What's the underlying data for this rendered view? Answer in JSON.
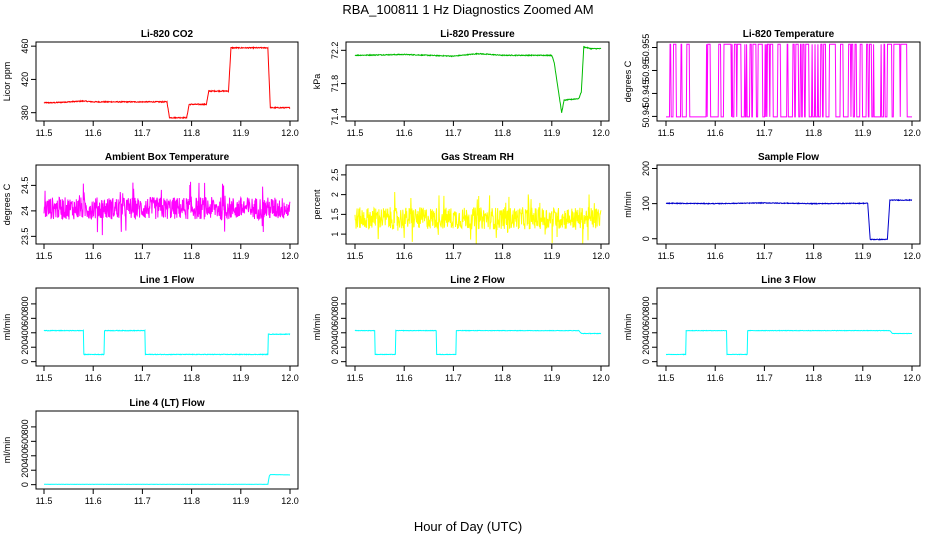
{
  "figure": {
    "title": "RBA_100811  1 Hz Diagnostics Zoomed AM",
    "xlabel": "Hour of Day (UTC)"
  },
  "chart_data": [
    {
      "type": "line",
      "title": "Li-820 CO2",
      "ylabel": "Licor ppm",
      "color": "#ff0000",
      "xlim": [
        11.5,
        12.0
      ],
      "xticks": [
        "11.5",
        "11.6",
        "11.7",
        "11.8",
        "11.9",
        "12.0"
      ],
      "ylim": [
        370,
        465
      ],
      "yticks": [
        380,
        420,
        460
      ],
      "noise": 0.6,
      "x": [
        11.5,
        11.52,
        11.58,
        11.6,
        11.75,
        11.755,
        11.79,
        11.795,
        11.83,
        11.835,
        11.875,
        11.88,
        11.955,
        11.96,
        12.0
      ],
      "y": [
        392,
        392,
        394,
        393,
        393,
        374,
        374,
        390,
        390,
        406,
        406,
        458,
        458,
        386,
        386
      ]
    },
    {
      "type": "line",
      "title": "Li-820 Pressure",
      "ylabel": "kPa",
      "color": "#00bb00",
      "xlim": [
        11.5,
        12.0
      ],
      "xticks": [
        "11.5",
        "11.6",
        "11.7",
        "11.8",
        "11.9",
        "12.0"
      ],
      "ylim": [
        71.35,
        72.3
      ],
      "yticks": [
        71.4,
        71.8,
        72.2
      ],
      "noise": 0.005,
      "x": [
        11.5,
        11.6,
        11.7,
        11.75,
        11.8,
        11.9,
        11.905,
        11.92,
        11.925,
        11.955,
        11.96,
        11.965,
        11.98,
        12.0
      ],
      "y": [
        72.14,
        72.15,
        72.13,
        72.16,
        72.14,
        72.14,
        72.05,
        71.45,
        71.6,
        71.62,
        71.7,
        72.24,
        72.22,
        72.22
      ]
    },
    {
      "type": "line",
      "title": "Li-820 Temperature",
      "ylabel": "degrees C",
      "color": "#ff00ff",
      "xlim": [
        11.5,
        12.0
      ],
      "xticks": [
        "11.5",
        "11.6",
        "11.7",
        "11.8",
        "11.9",
        "12.0"
      ],
      "ylim": [
        50.939,
        50.9562
      ],
      "yticks": [
        50.94,
        50.945,
        50.95,
        50.955
      ],
      "levels": [
        50.9399,
        50.9557
      ],
      "x_end": 11.995
    },
    {
      "type": "line",
      "title": "Ambient Box Temperature",
      "ylabel": "degrees C",
      "color": "#ff00ff",
      "xlim": [
        11.5,
        12.0
      ],
      "xticks": [
        "11.5",
        "11.6",
        "11.7",
        "11.8",
        "11.9",
        "12.0"
      ],
      "ylim": [
        23.35,
        24.9
      ],
      "yticks": [
        23.5,
        24.0,
        24.5
      ],
      "noise_mean": 24.05,
      "noise_amp": 0.22
    },
    {
      "type": "line",
      "title": "Gas Stream RH",
      "ylabel": "percent",
      "color": "#ffff00",
      "xlim": [
        11.5,
        12.0
      ],
      "xticks": [
        "11.5",
        "11.6",
        "11.7",
        "11.8",
        "11.9",
        "12.0"
      ],
      "ylim": [
        0.75,
        2.75
      ],
      "yticks": [
        1.0,
        1.5,
        2.0,
        2.5
      ],
      "noise_mean": 1.4,
      "noise_amp": 0.28
    },
    {
      "type": "line",
      "title": "Sample Flow",
      "ylabel": "ml/min",
      "color": "#0000cc",
      "xlim": [
        11.5,
        12.0
      ],
      "xticks": [
        "11.5",
        "11.6",
        "11.7",
        "11.8",
        "11.9",
        "12.0"
      ],
      "ylim": [
        -15,
        210
      ],
      "yticks": [
        0,
        100,
        200
      ],
      "noise": 1.0,
      "x": [
        11.5,
        11.6,
        11.7,
        11.8,
        11.91,
        11.915,
        11.95,
        11.955,
        12.0
      ],
      "y": [
        101,
        100,
        102,
        100,
        101,
        -2,
        -2,
        110,
        110
      ]
    },
    {
      "type": "line",
      "title": "Line 1 Flow",
      "ylabel": "ml/min",
      "color": "#00ffff",
      "xlim": [
        11.5,
        12.0
      ],
      "xticks": [
        "11.5",
        "11.6",
        "11.7",
        "11.8",
        "11.9",
        "12.0"
      ],
      "ylim": [
        -60,
        1020
      ],
      "yticks": [
        0,
        200,
        400,
        600,
        800
      ],
      "noise": 4,
      "x": [
        11.5,
        11.58,
        11.581,
        11.622,
        11.623,
        11.705,
        11.706,
        11.955,
        11.956,
        12.0
      ],
      "y": [
        430,
        430,
        100,
        100,
        430,
        430,
        100,
        100,
        380,
        380
      ]
    },
    {
      "type": "line",
      "title": "Line 2 Flow",
      "ylabel": "ml/min",
      "color": "#00ffff",
      "xlim": [
        11.5,
        12.0
      ],
      "xticks": [
        "11.5",
        "11.6",
        "11.7",
        "11.8",
        "11.9",
        "12.0"
      ],
      "ylim": [
        -60,
        1020
      ],
      "yticks": [
        0,
        200,
        400,
        600,
        800
      ],
      "noise": 3,
      "x": [
        11.5,
        11.54,
        11.541,
        11.582,
        11.583,
        11.665,
        11.666,
        11.705,
        11.706,
        11.955,
        11.96,
        12.0
      ],
      "y": [
        430,
        430,
        100,
        100,
        430,
        430,
        100,
        100,
        430,
        430,
        390,
        390
      ]
    },
    {
      "type": "line",
      "title": "Line 3 Flow",
      "ylabel": "ml/min",
      "color": "#00ffff",
      "xlim": [
        11.5,
        12.0
      ],
      "xticks": [
        "11.5",
        "11.6",
        "11.7",
        "11.8",
        "11.9",
        "12.0"
      ],
      "ylim": [
        -60,
        1020
      ],
      "yticks": [
        0,
        200,
        400,
        600,
        800
      ],
      "noise": 3,
      "x": [
        11.5,
        11.54,
        11.541,
        11.623,
        11.624,
        11.665,
        11.666,
        11.955,
        11.96,
        12.0
      ],
      "y": [
        100,
        100,
        430,
        430,
        100,
        100,
        430,
        430,
        390,
        390
      ]
    },
    {
      "type": "line",
      "title": "Line 4 (LT) Flow",
      "ylabel": "ml/min",
      "color": "#00ffff",
      "xlim": [
        11.5,
        12.0
      ],
      "xticks": [
        "11.5",
        "11.6",
        "11.7",
        "11.8",
        "11.9",
        "12.0"
      ],
      "ylim": [
        -60,
        1020
      ],
      "yticks": [
        0,
        200,
        400,
        600,
        800
      ],
      "noise": 1,
      "x": [
        11.5,
        11.955,
        11.958,
        11.96,
        12.0
      ],
      "y": [
        5,
        5,
        120,
        140,
        135
      ]
    }
  ]
}
